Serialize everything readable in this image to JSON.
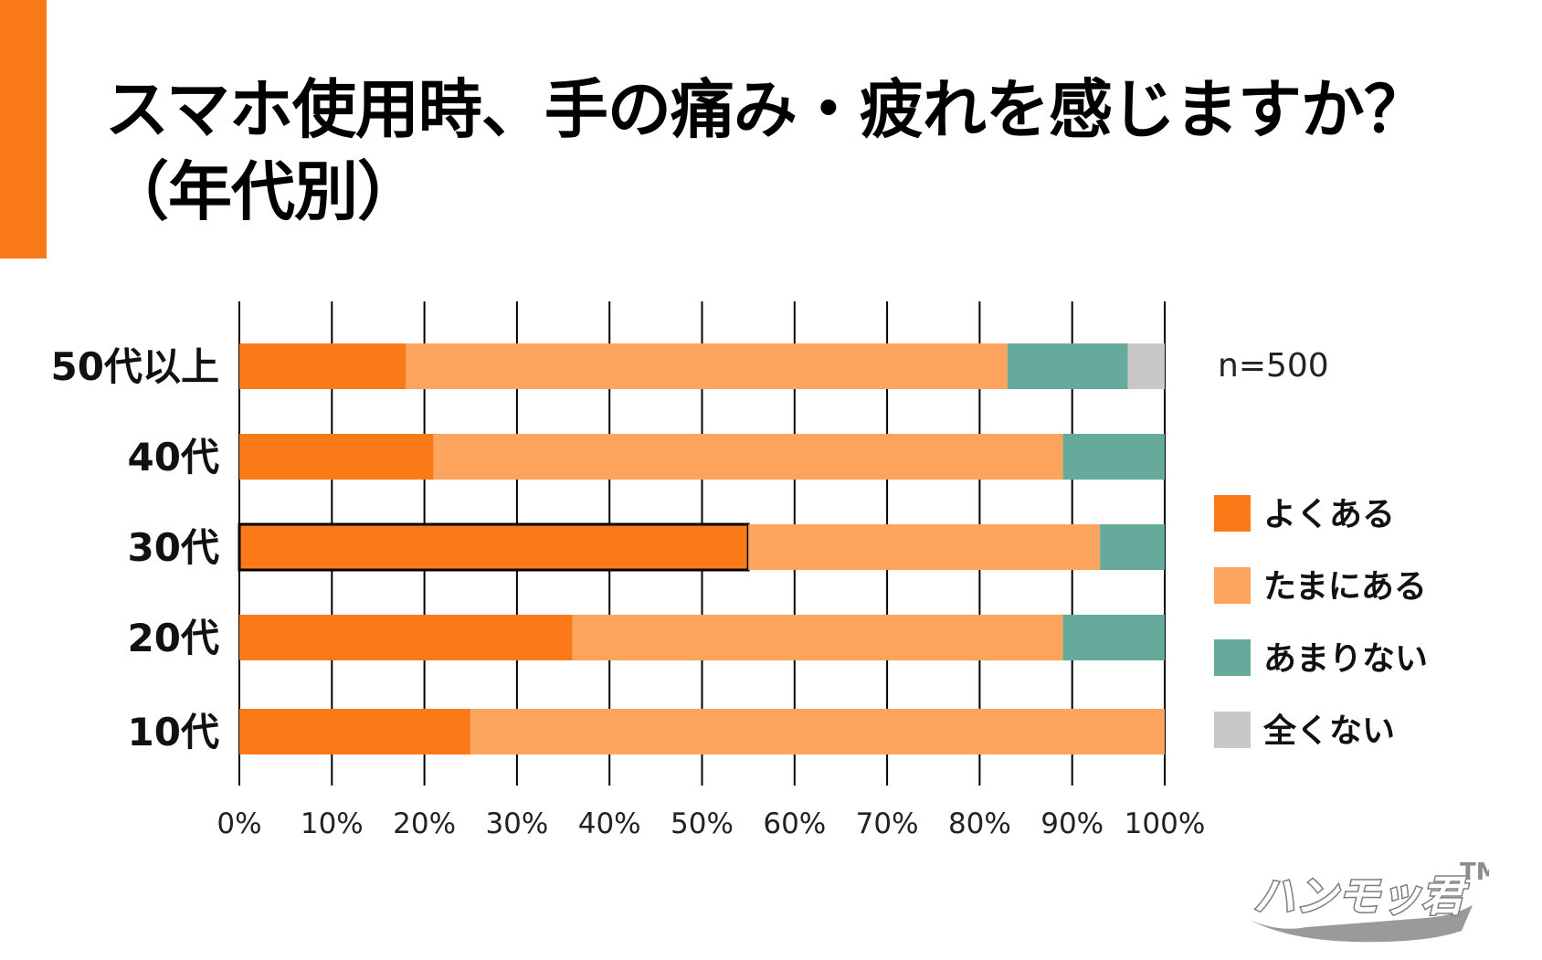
{
  "title": {
    "line1": "スマホ使用時、手の痛み・疲れを感じますか？",
    "line2": "（年代別）"
  },
  "sample_size": "n=500",
  "brand": {
    "logo_text": "ハンモッ君",
    "trademark": "TM"
  },
  "colors": {
    "accent": "#FA7A18",
    "often": "#FA7A18",
    "sometimes": "#FCA35E",
    "rarely": "#66AA9C",
    "never": "#C8C8C8"
  },
  "chart_data": {
    "type": "bar",
    "orientation": "horizontal",
    "stacked": true,
    "title": "スマホ使用時、手の痛み・疲れを感じますか？（年代別）",
    "categories": [
      "50代以上",
      "40代",
      "30代",
      "20代",
      "10代"
    ],
    "series": [
      {
        "name": "よくある",
        "color": "#FA7A18",
        "values": [
          18,
          21,
          55,
          36,
          25
        ]
      },
      {
        "name": "たまにある",
        "color": "#FCA35E",
        "values": [
          65,
          68,
          38,
          53,
          75
        ]
      },
      {
        "name": "あまりない",
        "color": "#66AA9C",
        "values": [
          13,
          11,
          7,
          11,
          0
        ]
      },
      {
        "name": "全くない",
        "color": "#C8C8C8",
        "values": [
          4,
          0,
          0,
          0,
          0
        ]
      }
    ],
    "highlight": {
      "category": "30代",
      "series": "よくある"
    },
    "xlim": [
      0,
      100
    ],
    "xticks": [
      "0%",
      "10%",
      "20%",
      "30%",
      "40%",
      "50%",
      "60%",
      "70%",
      "80%",
      "90%",
      "100%"
    ],
    "xlabel": "",
    "ylabel": "",
    "grid": true,
    "legend": "right",
    "annotation": "n=500"
  }
}
